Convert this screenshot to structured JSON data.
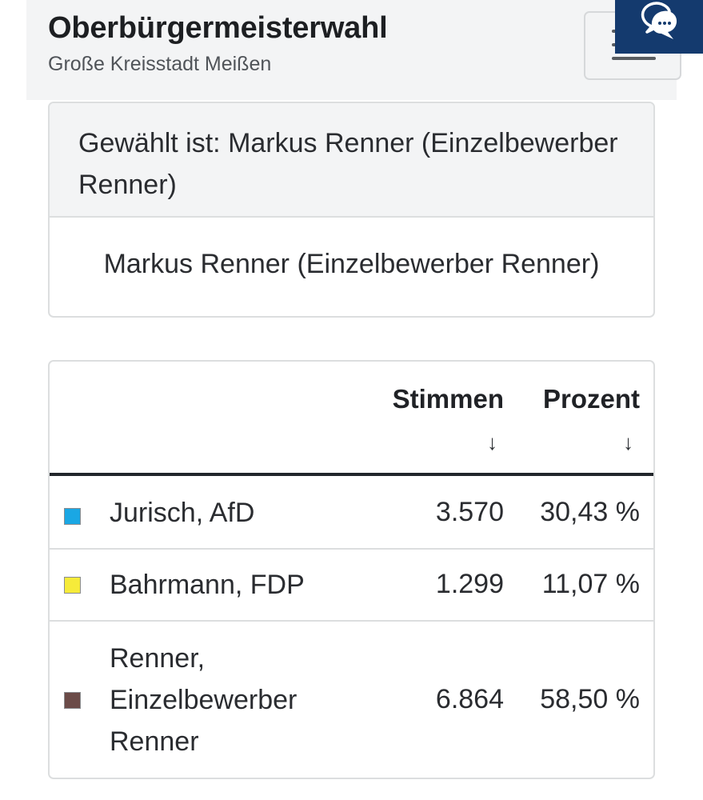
{
  "header": {
    "title": "Oberbürgermeisterwahl",
    "subtitle": "Große Kreisstadt Meißen"
  },
  "winner": {
    "heading": "Gewählt ist: Markus Renner (Einzelbewerber Renner)",
    "name": "Markus Renner (Einzelbewerber Renner)"
  },
  "results": {
    "columns": {
      "votes": "Stimmen",
      "percent": "Prozent"
    },
    "sort_arrow": "↓",
    "rows": [
      {
        "name": "Jurisch, AfD",
        "votes": "3.570",
        "percent": "30,43 %",
        "color": "#1aa7e4"
      },
      {
        "name": "Bahrmann, FDP",
        "votes": "1.299",
        "percent": "11,07 %",
        "color": "#f6eb3a"
      },
      {
        "name": "Renner, Einzelbewerber Renner",
        "votes": "6.864",
        "percent": "58,50 %",
        "color": "#6b4b48"
      }
    ]
  },
  "icons": {
    "menu": "hamburger-menu-icon",
    "chat": "chat-bubbles-icon"
  }
}
